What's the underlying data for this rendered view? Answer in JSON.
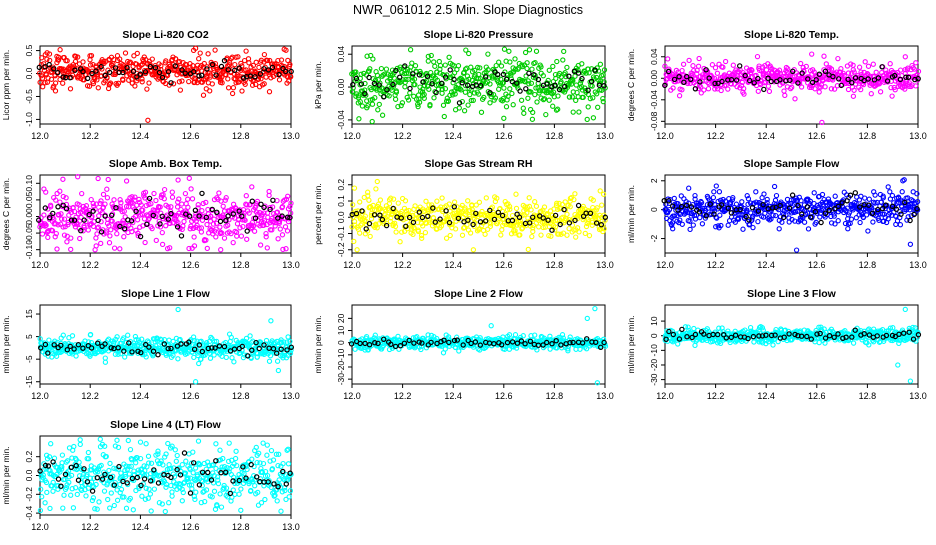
{
  "page_title": "NWR_061012  2.5 Min. Slope Diagnostics",
  "chart_data": [
    {
      "type": "scatter",
      "title": "Slope Li-820 CO2",
      "ylabel": "Licor ppm per min.",
      "ylim": [
        -1.1,
        0.6
      ],
      "yticks": [
        -1.0,
        -0.5,
        0.0,
        0.5
      ],
      "ytick_labels": [
        "-1.0",
        "-0.5",
        "0.0",
        "0.5"
      ],
      "xlim": [
        12.0,
        13.0
      ],
      "xticks": [
        12.0,
        12.2,
        12.4,
        12.6,
        12.8,
        13.0
      ],
      "xtick_labels": [
        "12.0",
        "12.2",
        "12.4",
        "12.6",
        "12.8",
        "13.0"
      ],
      "color": "#ff0000",
      "noise": 0.18,
      "n": 520,
      "offset": 0.05,
      "outliers": [
        [
          12.43,
          -1.02
        ],
        [
          12.62,
          0.55
        ],
        [
          12.08,
          0.52
        ]
      ]
    },
    {
      "type": "scatter",
      "title": "Slope Li-820 Pressure",
      "ylabel": "kPa per min.",
      "ylim": [
        -0.045,
        0.05
      ],
      "yticks": [
        -0.04,
        0.0,
        0.04
      ],
      "ytick_labels": [
        "-0.04",
        "0.00",
        "0.04"
      ],
      "xlim": [
        12.0,
        13.0
      ],
      "xticks": [
        12.0,
        12.2,
        12.4,
        12.6,
        12.8,
        13.0
      ],
      "xtick_labels": [
        "12.0",
        "12.2",
        "12.4",
        "12.6",
        "12.8",
        "13.0"
      ],
      "color": "#00cc00",
      "noise": 0.016,
      "n": 520,
      "offset": 0.005,
      "outliers": [
        [
          12.08,
          -0.042
        ],
        [
          12.6,
          -0.038
        ],
        [
          12.45,
          0.045
        ]
      ]
    },
    {
      "type": "scatter",
      "title": "Slope Li-820 Temp.",
      "ylabel": "degrees C per min.",
      "ylim": [
        -0.085,
        0.06
      ],
      "yticks": [
        -0.08,
        -0.04,
        0.0,
        0.04
      ],
      "ytick_labels": [
        "-0.08",
        "-0.04",
        "0.00",
        "0.04"
      ],
      "xlim": [
        12.0,
        13.0
      ],
      "xticks": [
        12.0,
        12.2,
        12.4,
        12.6,
        12.8,
        13.0
      ],
      "xtick_labels": [
        "12.0",
        "12.2",
        "12.4",
        "12.6",
        "12.8",
        "13.0"
      ],
      "color": "#ff00ff",
      "noise": 0.012,
      "n": 520,
      "offset": 0.0,
      "outliers": [
        [
          12.62,
          -0.082
        ],
        [
          12.58,
          0.045
        ],
        [
          12.95,
          0.04
        ]
      ]
    },
    {
      "type": "scatter",
      "title": "Slope Amb. Box Temp.",
      "ylabel": "degrees C per min.",
      "ylim": [
        -0.11,
        0.125
      ],
      "yticks": [
        -0.1,
        -0.05,
        0.0,
        0.05,
        0.1
      ],
      "ytick_labels": [
        "-0.10",
        "-0.05",
        "0.00",
        "0.05",
        "0.10"
      ],
      "xlim": [
        12.0,
        13.0
      ],
      "xticks": [
        12.0,
        12.2,
        12.4,
        12.6,
        12.8,
        13.0
      ],
      "xtick_labels": [
        "12.0",
        "12.2",
        "12.4",
        "12.6",
        "12.8",
        "13.0"
      ],
      "color": "#ff00ff",
      "noise": 0.04,
      "n": 520,
      "offset": 0.0,
      "outliers": [
        [
          12.15,
          0.12
        ],
        [
          12.72,
          -0.1
        ],
        [
          12.55,
          0.11
        ]
      ]
    },
    {
      "type": "scatter",
      "title": "Slope Gas Stream RH",
      "ylabel": "percent per min.",
      "ylim": [
        -0.22,
        0.26
      ],
      "yticks": [
        -0.2,
        -0.1,
        0.0,
        0.1,
        0.2
      ],
      "ytick_labels": [
        "-0.2",
        "-0.1",
        "0.0",
        "0.1",
        "0.2"
      ],
      "xlim": [
        12.0,
        13.0
      ],
      "xticks": [
        12.0,
        12.2,
        12.4,
        12.6,
        12.8,
        13.0
      ],
      "xtick_labels": [
        "12.0",
        "12.2",
        "12.4",
        "12.6",
        "12.8",
        "13.0"
      ],
      "color": "#ffff00",
      "noise": 0.06,
      "n": 520,
      "offset": 0.0,
      "outliers": [
        [
          12.1,
          0.22
        ],
        [
          12.02,
          -0.2
        ],
        [
          12.48,
          -0.2
        ]
      ]
    },
    {
      "type": "scatter",
      "title": "Slope Sample Flow",
      "ylabel": "ml/min per min.",
      "ylim": [
        -3.0,
        2.4
      ],
      "yticks": [
        -2,
        0,
        2
      ],
      "ytick_labels": [
        "-2",
        "0",
        "2"
      ],
      "xlim": [
        12.0,
        13.0
      ],
      "xticks": [
        12.0,
        12.2,
        12.4,
        12.6,
        12.8,
        13.0
      ],
      "xtick_labels": [
        "12.0",
        "12.2",
        "12.4",
        "12.6",
        "12.8",
        "13.0"
      ],
      "color": "#0000ff",
      "noise": 0.55,
      "n": 520,
      "offset": 0.0,
      "outliers": [
        [
          12.52,
          -2.8
        ],
        [
          12.94,
          2.0
        ],
        [
          12.97,
          -2.4
        ]
      ]
    },
    {
      "type": "scatter",
      "title": "Slope Line 1 Flow",
      "ylabel": "ml/min per min.",
      "ylim": [
        -16,
        19
      ],
      "yticks": [
        -15,
        -5,
        5,
        15
      ],
      "ytick_labels": [
        "-15",
        "-5",
        "5",
        "15"
      ],
      "xlim": [
        12.0,
        13.0
      ],
      "xticks": [
        12.0,
        12.2,
        12.4,
        12.6,
        12.8,
        13.0
      ],
      "xtick_labels": [
        "12.0",
        "12.2",
        "12.4",
        "12.6",
        "12.8",
        "13.0"
      ],
      "color": "#00ffff",
      "noise": 2.2,
      "n": 520,
      "offset": 0.0,
      "outliers": [
        [
          12.55,
          17
        ],
        [
          12.62,
          -15
        ],
        [
          12.95,
          -10
        ],
        [
          12.92,
          12
        ]
      ]
    },
    {
      "type": "scatter",
      "title": "Slope Line 2 Flow",
      "ylabel": "ml/min per min.",
      "ylim": [
        -34,
        31
      ],
      "yticks": [
        -30,
        -20,
        -10,
        0,
        10,
        20
      ],
      "ytick_labels": [
        "-30",
        "-20",
        "-10",
        "0",
        "10",
        "20"
      ],
      "xlim": [
        12.0,
        13.0
      ],
      "xticks": [
        12.0,
        12.2,
        12.4,
        12.6,
        12.8,
        13.0
      ],
      "xtick_labels": [
        "12.0",
        "12.2",
        "12.4",
        "12.6",
        "12.8",
        "13.0"
      ],
      "color": "#00ffff",
      "noise": 2.5,
      "n": 520,
      "offset": 0.0,
      "outliers": [
        [
          12.97,
          -33
        ],
        [
          12.93,
          20
        ],
        [
          12.55,
          14
        ],
        [
          12.96,
          28
        ]
      ]
    },
    {
      "type": "scatter",
      "title": "Slope Line 3 Flow",
      "ylabel": "ml/min per min.",
      "ylim": [
        -33,
        21
      ],
      "yticks": [
        -30,
        -20,
        -10,
        0,
        10
      ],
      "ytick_labels": [
        "-30",
        "-20",
        "-10",
        "0",
        "10"
      ],
      "xlim": [
        12.0,
        13.0
      ],
      "xticks": [
        12.0,
        12.2,
        12.4,
        12.6,
        12.8,
        13.0
      ],
      "xtick_labels": [
        "12.0",
        "12.2",
        "12.4",
        "12.6",
        "12.8",
        "13.0"
      ],
      "color": "#00ffff",
      "noise": 2.5,
      "n": 520,
      "offset": 0.0,
      "outliers": [
        [
          12.97,
          -31
        ],
        [
          12.95,
          18
        ],
        [
          12.92,
          -20
        ]
      ]
    },
    {
      "type": "scatter",
      "title": "Slope Line 4 (LT) Flow",
      "ylabel": "ml/min per min.",
      "ylim": [
        -0.42,
        0.42
      ],
      "yticks": [
        -0.4,
        -0.2,
        0.0,
        0.2
      ],
      "ytick_labels": [
        "-0.4",
        "-0.2",
        "0.0",
        "0.2"
      ],
      "xlim": [
        12.0,
        13.0
      ],
      "xticks": [
        12.0,
        12.2,
        12.4,
        12.6,
        12.8,
        13.0
      ],
      "xtick_labels": [
        "12.0",
        "12.2",
        "12.4",
        "12.6",
        "12.8",
        "13.0"
      ],
      "color": "#00ffff",
      "noise": 0.15,
      "n": 520,
      "offset": 0.0,
      "outliers": [
        [
          12.16,
          0.38
        ],
        [
          12.96,
          -0.38
        ],
        [
          12.04,
          -0.35
        ]
      ]
    }
  ]
}
